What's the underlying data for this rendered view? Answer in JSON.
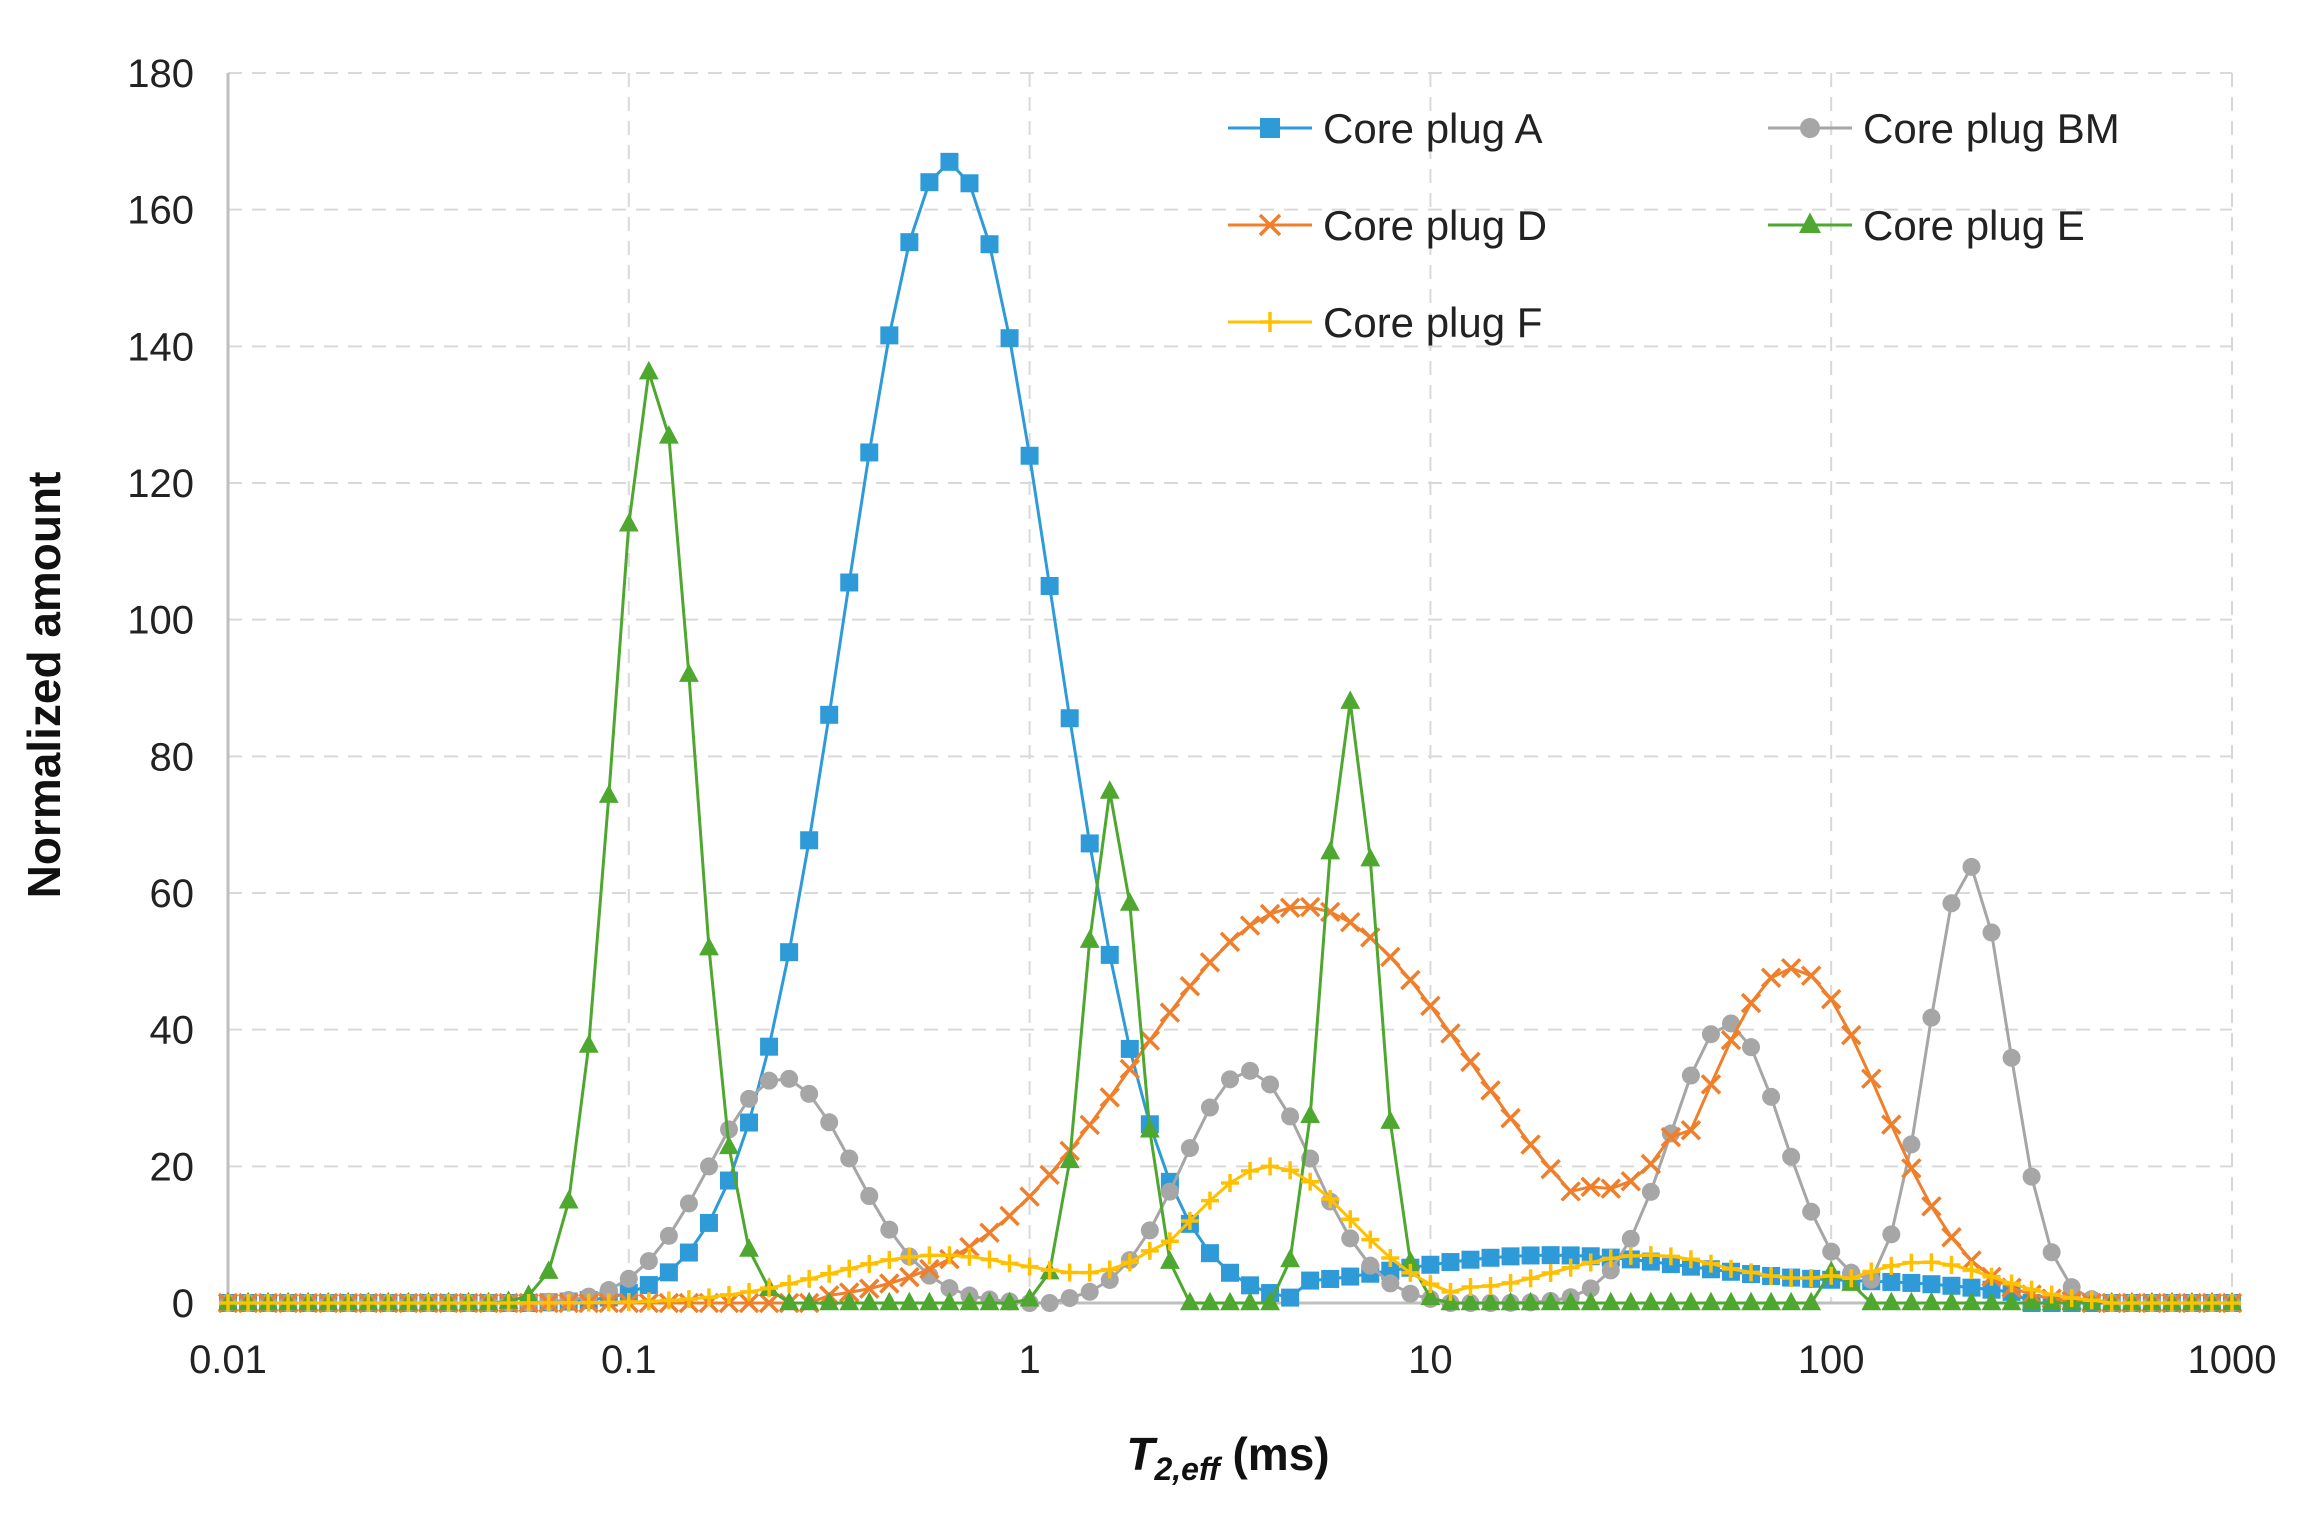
{
  "chart_data": {
    "type": "line",
    "xscale": "log",
    "xlim": [
      0.01,
      1000
    ],
    "ylim": [
      0,
      180
    ],
    "xticks": [
      0.01,
      0.1,
      1,
      10,
      100,
      1000
    ],
    "xtick_labels": [
      "0.01",
      "0.1",
      "1",
      "10",
      "100",
      "1000"
    ],
    "yticks": [
      0,
      20,
      40,
      60,
      80,
      100,
      120,
      140,
      160,
      180
    ],
    "ytick_labels": [
      "0",
      "20",
      "40",
      "60",
      "80",
      "100",
      "120",
      "140",
      "160",
      "180"
    ],
    "xlabel_main": "T",
    "xlabel_sub": "2,eff",
    "xlabel_unit": " (ms)",
    "ylabel": "Normalized amount",
    "grid": "dashed",
    "legend_position": "top-right",
    "samples_per_decade": 20,
    "series": [
      {
        "name": "Core plug A",
        "color": "#2e9bd8",
        "marker": "square",
        "peaks": [
          {
            "center": 0.63,
            "height": 167,
            "width_decades": 0.26,
            "range": [
              0.06,
              8
            ]
          },
          {
            "center": 20,
            "height": 7,
            "width_decades": 0.45,
            "range": [
              4.5,
              300
            ]
          },
          {
            "center": 170,
            "height": 2,
            "width_decades": 0.25,
            "range": [
              4.5,
              300
            ]
          }
        ]
      },
      {
        "name": "Core plug BM",
        "color": "#a6a6a6",
        "marker": "circle",
        "peaks": [
          {
            "center": 0.24,
            "height": 33,
            "width_decades": 0.18,
            "range": [
              0.06,
              0.9
            ]
          },
          {
            "center": 3.5,
            "height": 34,
            "width_decades": 0.16,
            "range": [
              1.2,
              10
            ]
          },
          {
            "center": 55,
            "height": 41,
            "width_decades": 0.14,
            "range": [
              15,
              120
            ]
          },
          {
            "center": 220,
            "height": 64,
            "width_decades": 0.1,
            "range": [
              100,
              500
            ]
          }
        ]
      },
      {
        "name": "Core plug D",
        "color": "#f07f2b",
        "marker": "x",
        "peaks": [
          {
            "center": 4.8,
            "height": 58,
            "width_decades": 0.42,
            "range": [
              0.3,
              40
            ]
          },
          {
            "center": 80,
            "height": 49,
            "width_decades": 0.22,
            "range": [
              25,
              400
            ]
          }
        ]
      },
      {
        "name": "Core plug E",
        "color": "#4ea72e",
        "marker": "triangle",
        "peaks": [
          {
            "center": 0.115,
            "height": 137,
            "width_decades": 0.1,
            "range": [
              0.05,
              0.25
            ]
          },
          {
            "center": 1.6,
            "height": 75,
            "width_decades": 0.065,
            "range": [
              1,
              2.5
            ]
          },
          {
            "center": 6.3,
            "height": 88,
            "width_decades": 0.065,
            "range": [
              4,
              10
            ]
          },
          {
            "center": 105,
            "height": 8,
            "width_decades": 0.02,
            "range": [
              90,
              120
            ]
          }
        ]
      },
      {
        "name": "Core plug F",
        "color": "#ffc000",
        "marker": "plus",
        "peaks": [
          {
            "center": 0.6,
            "height": 7,
            "width_decades": 0.28,
            "range": [
              0.05,
              2.2
            ]
          },
          {
            "center": 4,
            "height": 20,
            "width_decades": 0.2,
            "range": [
              1,
              20
            ]
          },
          {
            "center": 35,
            "height": 7,
            "width_decades": 0.25,
            "range": [
              12,
              100
            ]
          },
          {
            "center": 170,
            "height": 6,
            "width_decades": 0.18,
            "range": [
              60,
              500
            ]
          }
        ]
      }
    ]
  }
}
